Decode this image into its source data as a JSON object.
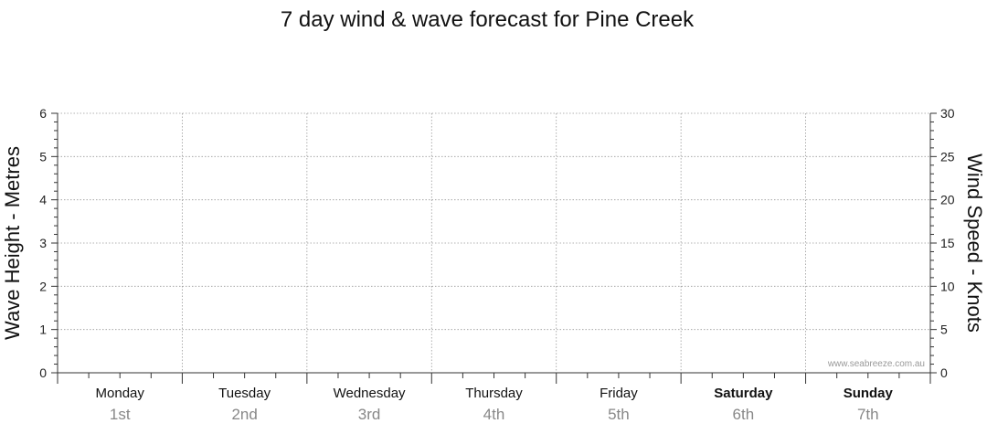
{
  "chart_data": {
    "type": "line",
    "title": "7 day wind & wave forecast for Pine Creek",
    "ylabel_left": "Wave Height - Metres",
    "ylabel_right": "Wind Speed - Knots",
    "ylim_left": [
      0,
      6
    ],
    "ylim_right": [
      0,
      30
    ],
    "yticks_left": [
      "0",
      "1",
      "2",
      "3",
      "4",
      "5",
      "6"
    ],
    "yticks_right": [
      "0",
      "5",
      "10",
      "15",
      "20",
      "25",
      "30"
    ],
    "grid": true,
    "categories": [
      {
        "day": "Monday",
        "date": "1st",
        "weekend": false
      },
      {
        "day": "Tuesday",
        "date": "2nd",
        "weekend": false
      },
      {
        "day": "Wednesday",
        "date": "3rd",
        "weekend": false
      },
      {
        "day": "Thursday",
        "date": "4th",
        "weekend": false
      },
      {
        "day": "Friday",
        "date": "5th",
        "weekend": false
      },
      {
        "day": "Saturday",
        "date": "6th",
        "weekend": true
      },
      {
        "day": "Sunday",
        "date": "7th",
        "weekend": true
      }
    ],
    "series": []
  },
  "credit": "www.seabreeze.com.au"
}
